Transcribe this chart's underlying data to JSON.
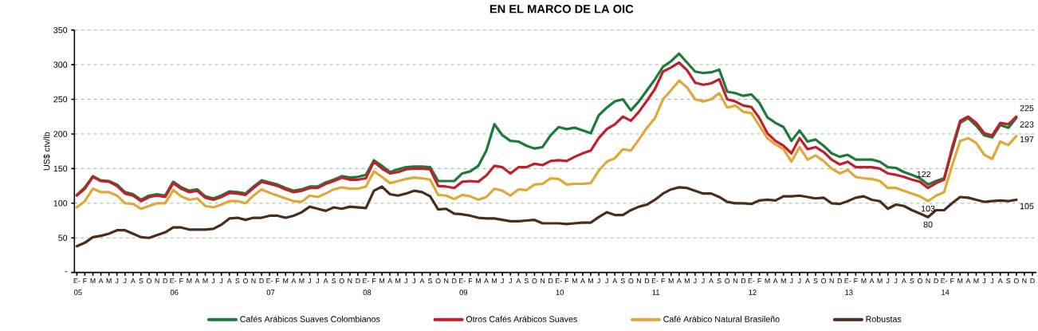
{
  "chart_data": {
    "type": "line",
    "title": "EN EL MARCO DE LA OIC",
    "ylabel": "US$ ctv/lb",
    "categories": [
      "E-",
      "F",
      "M",
      "A",
      "M",
      "J",
      "J",
      "A",
      "S",
      "O",
      "N",
      "D",
      "E-",
      "F",
      "M",
      "A",
      "M",
      "J",
      "J",
      "A",
      "S",
      "O",
      "N",
      "D",
      "E-",
      "F",
      "M",
      "A",
      "M",
      "J",
      "J",
      "A",
      "S",
      "O",
      "N",
      "D",
      "E-",
      "F",
      "M",
      "A",
      "M",
      "J",
      "J",
      "A",
      "S",
      "O",
      "N",
      "D",
      "E-",
      "F",
      "M",
      "A",
      "M",
      "J",
      "J",
      "A",
      "S",
      "O",
      "N",
      "D",
      "E-",
      "F",
      "M",
      "A",
      "M",
      "J",
      "J",
      "A",
      "S",
      "O",
      "N",
      "D",
      "E-",
      "F",
      "M",
      "A",
      "M",
      "J",
      "J",
      "A",
      "S",
      "O",
      "N",
      "D",
      "E-",
      "F",
      "M",
      "A",
      "M",
      "J",
      "J",
      "A",
      "S",
      "O",
      "N",
      "D",
      "E-",
      "F",
      "M",
      "A",
      "M",
      "J",
      "J",
      "A",
      "S",
      "O",
      "N",
      "D",
      "E-",
      "F",
      "M",
      "A",
      "M",
      "J",
      "J",
      "A",
      "S",
      "O",
      "N",
      "D"
    ],
    "annotations": [
      "05",
      "06",
      "07",
      "08",
      "09",
      "10",
      "11",
      "12",
      "13",
      "14"
    ],
    "ylim": [
      0,
      350
    ],
    "yticks": [
      {
        "value": 0,
        "label": "-"
      },
      50,
      100,
      150,
      200,
      250,
      300,
      350
    ],
    "grid": "y",
    "legend": "bottom",
    "marker": "none",
    "line_style": "solid",
    "series": [
      {
        "name": "Cafés Arábicos Suaves Colombianos",
        "color": "#1e7a3a",
        "values": [
          112,
          123,
          139,
          133,
          132,
          127,
          116,
          113,
          105,
          111,
          113,
          111,
          131,
          123,
          118,
          120,
          110,
          107,
          111,
          117,
          116,
          114,
          124,
          133,
          130,
          127,
          122,
          118,
          120,
          124,
          124,
          130,
          134,
          139,
          137,
          138,
          141,
          162,
          154,
          145,
          149,
          152,
          153,
          153,
          152,
          132,
          132,
          132,
          143,
          146,
          154,
          176,
          214,
          198,
          190,
          189,
          183,
          179,
          181,
          198,
          210,
          207,
          209,
          205,
          201,
          227,
          238,
          247,
          250,
          234,
          247,
          263,
          279,
          297,
          305,
          316,
          303,
          290,
          288,
          289,
          293,
          261,
          259,
          255,
          257,
          245,
          224,
          216,
          210,
          190,
          205,
          189,
          192,
          183,
          172,
          167,
          170,
          163,
          163,
          163,
          160,
          152,
          151,
          145,
          141,
          136,
          127,
          132,
          136,
          176,
          216,
          223,
          212,
          198,
          195,
          213,
          209,
          223,
          null,
          null
        ],
        "value_labels": [
          null,
          null,
          null,
          null,
          null,
          null,
          null,
          null,
          null,
          null,
          null,
          null,
          null,
          null,
          null,
          null,
          null,
          null,
          null,
          null,
          null,
          null,
          null,
          null,
          null,
          null,
          null,
          null,
          null,
          null,
          null,
          null,
          null,
          null,
          null,
          null,
          null,
          null,
          null,
          null,
          null,
          null,
          null,
          null,
          null,
          null,
          null,
          null,
          null,
          null,
          null,
          null,
          null,
          null,
          null,
          null,
          null,
          null,
          null,
          null,
          null,
          null,
          null,
          null,
          null,
          null,
          null,
          null,
          null,
          null,
          null,
          null,
          null,
          null,
          null,
          null,
          null,
          null,
          null,
          null,
          null,
          null,
          null,
          null,
          null,
          null,
          null,
          null,
          null,
          null,
          null,
          null,
          null,
          null,
          null,
          null,
          null,
          null,
          null,
          null,
          null,
          null,
          null,
          null,
          null,
          null,
          null,
          null,
          null,
          null,
          null,
          null,
          null,
          null,
          null,
          null,
          null,
          "223",
          null,
          null
        ]
      },
      {
        "name": "Otros Cafés Arábicos Suaves",
        "color": "#c0202a",
        "values": [
          111,
          121,
          138,
          132,
          131,
          125,
          114,
          111,
          103,
          109,
          111,
          109,
          129,
          121,
          116,
          118,
          108,
          105,
          109,
          115,
          114,
          112,
          122,
          131,
          128,
          125,
          120,
          116,
          118,
          122,
          122,
          128,
          132,
          137,
          134,
          134,
          136,
          160,
          150,
          143,
          145,
          149,
          150,
          150,
          149,
          125,
          124,
          122,
          131,
          132,
          131,
          140,
          154,
          152,
          143,
          152,
          152,
          157,
          155,
          161,
          162,
          161,
          167,
          172,
          176,
          194,
          207,
          214,
          225,
          219,
          232,
          248,
          265,
          290,
          296,
          303,
          292,
          274,
          271,
          273,
          279,
          250,
          247,
          241,
          239,
          223,
          201,
          190,
          183,
          172,
          194,
          178,
          181,
          174,
          163,
          156,
          160,
          152,
          152,
          152,
          150,
          143,
          141,
          138,
          134,
          131,
          122,
          129,
          134,
          180,
          219,
          225,
          216,
          201,
          198,
          216,
          214,
          225,
          null,
          null
        ],
        "value_labels": [
          null,
          null,
          null,
          null,
          null,
          null,
          null,
          null,
          null,
          null,
          null,
          null,
          null,
          null,
          null,
          null,
          null,
          null,
          null,
          null,
          null,
          null,
          null,
          null,
          null,
          null,
          null,
          null,
          null,
          null,
          null,
          null,
          null,
          null,
          null,
          null,
          null,
          null,
          null,
          null,
          null,
          null,
          null,
          null,
          null,
          null,
          null,
          null,
          null,
          null,
          null,
          null,
          null,
          null,
          null,
          null,
          null,
          null,
          null,
          null,
          null,
          null,
          null,
          null,
          null,
          null,
          null,
          null,
          null,
          null,
          null,
          null,
          null,
          null,
          null,
          null,
          null,
          null,
          null,
          null,
          null,
          null,
          null,
          null,
          null,
          null,
          null,
          null,
          null,
          null,
          null,
          null,
          null,
          null,
          null,
          null,
          null,
          null,
          null,
          null,
          null,
          null,
          null,
          null,
          null,
          null,
          "122",
          null,
          null,
          null,
          null,
          null,
          null,
          null,
          null,
          null,
          null,
          "225",
          null,
          null
        ]
      },
      {
        "name": "Café Arábico Natural Brasileño",
        "color": "#e0a838",
        "values": [
          94,
          103,
          121,
          116,
          116,
          111,
          100,
          99,
          92,
          96,
          100,
          100,
          119,
          110,
          105,
          107,
          96,
          94,
          98,
          103,
          103,
          100,
          111,
          120,
          115,
          111,
          107,
          103,
          102,
          111,
          109,
          114,
          120,
          123,
          121,
          121,
          124,
          146,
          138,
          129,
          132,
          135,
          137,
          136,
          134,
          112,
          111,
          106,
          112,
          110,
          105,
          109,
          121,
          118,
          111,
          120,
          119,
          127,
          128,
          136,
          135,
          127,
          128,
          128,
          129,
          147,
          160,
          165,
          178,
          176,
          192,
          209,
          223,
          250,
          263,
          277,
          267,
          250,
          247,
          250,
          259,
          238,
          241,
          232,
          230,
          212,
          194,
          185,
          178,
          160,
          181,
          163,
          169,
          161,
          150,
          143,
          148,
          138,
          136,
          135,
          132,
          122,
          122,
          118,
          114,
          110,
          103,
          111,
          116,
          154,
          190,
          194,
          187,
          170,
          164,
          189,
          184,
          197,
          null,
          null
        ],
        "value_labels": [
          null,
          null,
          null,
          null,
          null,
          null,
          null,
          null,
          null,
          null,
          null,
          null,
          null,
          null,
          null,
          null,
          null,
          null,
          null,
          null,
          null,
          null,
          null,
          null,
          null,
          null,
          null,
          null,
          null,
          null,
          null,
          null,
          null,
          null,
          null,
          null,
          null,
          null,
          null,
          null,
          null,
          null,
          null,
          null,
          null,
          null,
          null,
          null,
          null,
          null,
          null,
          null,
          null,
          null,
          null,
          null,
          null,
          null,
          null,
          null,
          null,
          null,
          null,
          null,
          null,
          null,
          null,
          null,
          null,
          null,
          null,
          null,
          null,
          null,
          null,
          null,
          null,
          null,
          null,
          null,
          null,
          null,
          null,
          null,
          null,
          null,
          null,
          null,
          null,
          null,
          null,
          null,
          null,
          null,
          null,
          null,
          null,
          null,
          null,
          null,
          null,
          null,
          null,
          null,
          null,
          null,
          "103",
          null,
          null,
          null,
          null,
          null,
          null,
          null,
          null,
          null,
          null,
          "197",
          null,
          null
        ]
      },
      {
        "name": "Robustas",
        "color": "#4a2e1a",
        "values": [
          38,
          43,
          51,
          53,
          56,
          61,
          61,
          56,
          51,
          50,
          54,
          58,
          65,
          65,
          62,
          62,
          62,
          63,
          69,
          78,
          79,
          76,
          79,
          79,
          82,
          82,
          79,
          82,
          87,
          95,
          92,
          89,
          94,
          92,
          95,
          94,
          93,
          118,
          124,
          113,
          111,
          114,
          118,
          116,
          110,
          91,
          92,
          85,
          84,
          82,
          79,
          78,
          78,
          76,
          74,
          74,
          75,
          76,
          71,
          71,
          71,
          70,
          71,
          72,
          72,
          80,
          87,
          83,
          83,
          90,
          95,
          98,
          105,
          114,
          120,
          123,
          122,
          118,
          114,
          114,
          109,
          102,
          100,
          100,
          99,
          104,
          105,
          104,
          110,
          110,
          111,
          109,
          107,
          108,
          100,
          99,
          103,
          108,
          110,
          105,
          103,
          92,
          98,
          96,
          90,
          85,
          80,
          90,
          90,
          100,
          109,
          108,
          105,
          102,
          103,
          104,
          103,
          105,
          null,
          null
        ],
        "value_labels": [
          null,
          null,
          null,
          null,
          null,
          null,
          null,
          null,
          null,
          null,
          null,
          null,
          null,
          null,
          null,
          null,
          null,
          null,
          null,
          null,
          null,
          null,
          null,
          null,
          null,
          null,
          null,
          null,
          null,
          null,
          null,
          null,
          null,
          null,
          null,
          null,
          null,
          null,
          null,
          null,
          null,
          null,
          null,
          null,
          null,
          null,
          null,
          null,
          null,
          null,
          null,
          null,
          null,
          null,
          null,
          null,
          null,
          null,
          null,
          null,
          null,
          null,
          null,
          null,
          null,
          null,
          null,
          null,
          null,
          null,
          null,
          null,
          null,
          null,
          null,
          null,
          null,
          null,
          null,
          null,
          null,
          null,
          null,
          null,
          null,
          null,
          null,
          null,
          null,
          null,
          null,
          null,
          null,
          null,
          null,
          null,
          null,
          null,
          null,
          null,
          null,
          null,
          null,
          null,
          null,
          null,
          "80",
          null,
          null,
          null,
          null,
          null,
          null,
          null,
          null,
          null,
          null,
          "105",
          null,
          null
        ]
      }
    ]
  }
}
